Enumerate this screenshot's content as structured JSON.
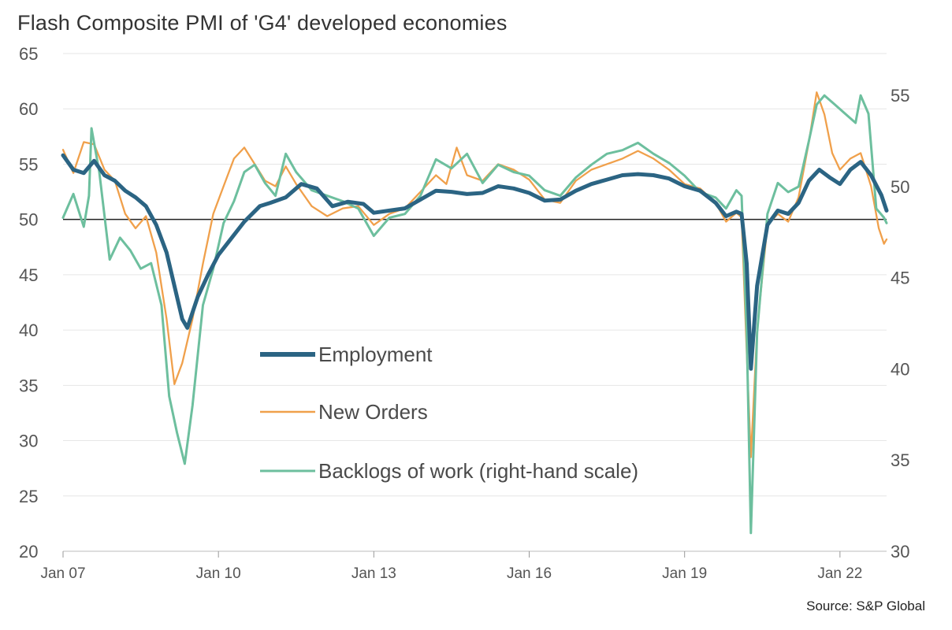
{
  "title": "Flash Composite PMI of 'G4' developed economies",
  "source": "Source: S&P Global",
  "colors": {
    "employment": "#2b6483",
    "new_orders": "#f0a04b",
    "backlogs": "#6dbf9e",
    "grid": "#e6e6e6",
    "reference": "#222222"
  },
  "chart_data": {
    "type": "line",
    "title": "Flash Composite PMI of 'G4' developed economies",
    "x_range": [
      2007.0,
      2022.9
    ],
    "x_tick_labels": [
      "Jan 07",
      "Jan 10",
      "Jan 13",
      "Jan 16",
      "Jan 19",
      "Jan 22"
    ],
    "x_tick_values": [
      2007,
      2010,
      2013,
      2016,
      2019,
      2022
    ],
    "ylim_left": [
      20,
      65
    ],
    "yticks_left": [
      20,
      25,
      30,
      35,
      40,
      45,
      50,
      55,
      60,
      65
    ],
    "ylim_right": [
      30,
      57.3
    ],
    "yticks_right": [
      30,
      35,
      40,
      45,
      50,
      55
    ],
    "reference_line": 50,
    "legend_position": "center-left",
    "series": [
      {
        "name": "Employment",
        "axis": "left",
        "points": [
          [
            2007.0,
            55.8
          ],
          [
            2007.2,
            54.5
          ],
          [
            2007.4,
            54.2
          ],
          [
            2007.6,
            55.3
          ],
          [
            2007.8,
            54.0
          ],
          [
            2008.0,
            53.5
          ],
          [
            2008.2,
            52.6
          ],
          [
            2008.4,
            52.0
          ],
          [
            2008.6,
            51.2
          ],
          [
            2008.8,
            49.5
          ],
          [
            2009.0,
            47.0
          ],
          [
            2009.15,
            44.0
          ],
          [
            2009.3,
            41.0
          ],
          [
            2009.4,
            40.2
          ],
          [
            2009.6,
            43.0
          ],
          [
            2009.8,
            45.0
          ],
          [
            2010.0,
            46.8
          ],
          [
            2010.2,
            48.0
          ],
          [
            2010.5,
            49.8
          ],
          [
            2010.8,
            51.2
          ],
          [
            2011.0,
            51.5
          ],
          [
            2011.3,
            52.0
          ],
          [
            2011.6,
            53.2
          ],
          [
            2011.9,
            52.8
          ],
          [
            2012.2,
            51.2
          ],
          [
            2012.5,
            51.6
          ],
          [
            2012.8,
            51.4
          ],
          [
            2013.0,
            50.6
          ],
          [
            2013.3,
            50.8
          ],
          [
            2013.6,
            51.0
          ],
          [
            2013.9,
            51.8
          ],
          [
            2014.2,
            52.6
          ],
          [
            2014.5,
            52.5
          ],
          [
            2014.8,
            52.3
          ],
          [
            2015.1,
            52.4
          ],
          [
            2015.4,
            53.0
          ],
          [
            2015.7,
            52.8
          ],
          [
            2016.0,
            52.4
          ],
          [
            2016.3,
            51.7
          ],
          [
            2016.6,
            51.8
          ],
          [
            2016.9,
            52.6
          ],
          [
            2017.2,
            53.2
          ],
          [
            2017.5,
            53.6
          ],
          [
            2017.8,
            54.0
          ],
          [
            2018.1,
            54.1
          ],
          [
            2018.4,
            54.0
          ],
          [
            2018.7,
            53.7
          ],
          [
            2019.0,
            53.0
          ],
          [
            2019.3,
            52.6
          ],
          [
            2019.6,
            51.5
          ],
          [
            2019.8,
            50.3
          ],
          [
            2020.0,
            50.7
          ],
          [
            2020.1,
            50.5
          ],
          [
            2020.2,
            46.0
          ],
          [
            2020.28,
            36.5
          ],
          [
            2020.4,
            44.0
          ],
          [
            2020.6,
            49.5
          ],
          [
            2020.8,
            50.8
          ],
          [
            2021.0,
            50.5
          ],
          [
            2021.2,
            51.5
          ],
          [
            2021.4,
            53.5
          ],
          [
            2021.6,
            54.5
          ],
          [
            2021.8,
            53.8
          ],
          [
            2022.0,
            53.2
          ],
          [
            2022.2,
            54.5
          ],
          [
            2022.4,
            55.2
          ],
          [
            2022.6,
            54.0
          ],
          [
            2022.8,
            52.2
          ],
          [
            2022.9,
            50.8
          ]
        ]
      },
      {
        "name": "New Orders",
        "axis": "left",
        "points": [
          [
            2007.0,
            56.3
          ],
          [
            2007.2,
            54.2
          ],
          [
            2007.4,
            57.0
          ],
          [
            2007.6,
            56.8
          ],
          [
            2007.8,
            54.5
          ],
          [
            2008.0,
            53.5
          ],
          [
            2008.2,
            50.5
          ],
          [
            2008.4,
            49.2
          ],
          [
            2008.6,
            50.3
          ],
          [
            2008.8,
            47.0
          ],
          [
            2009.0,
            41.0
          ],
          [
            2009.15,
            35.1
          ],
          [
            2009.3,
            37.0
          ],
          [
            2009.5,
            41.0
          ],
          [
            2009.7,
            46.0
          ],
          [
            2009.9,
            50.5
          ],
          [
            2010.1,
            53.0
          ],
          [
            2010.3,
            55.5
          ],
          [
            2010.5,
            56.5
          ],
          [
            2010.7,
            55.0
          ],
          [
            2010.9,
            53.5
          ],
          [
            2011.1,
            53.0
          ],
          [
            2011.3,
            54.8
          ],
          [
            2011.5,
            53.2
          ],
          [
            2011.8,
            51.2
          ],
          [
            2012.1,
            50.3
          ],
          [
            2012.4,
            51.0
          ],
          [
            2012.7,
            51.2
          ],
          [
            2013.0,
            49.5
          ],
          [
            2013.3,
            50.5
          ],
          [
            2013.6,
            51.0
          ],
          [
            2013.9,
            52.5
          ],
          [
            2014.2,
            54.0
          ],
          [
            2014.4,
            53.2
          ],
          [
            2014.6,
            56.5
          ],
          [
            2014.8,
            54.0
          ],
          [
            2015.1,
            53.5
          ],
          [
            2015.4,
            55.0
          ],
          [
            2015.7,
            54.5
          ],
          [
            2016.0,
            53.6
          ],
          [
            2016.3,
            51.8
          ],
          [
            2016.6,
            51.5
          ],
          [
            2016.9,
            53.5
          ],
          [
            2017.2,
            54.5
          ],
          [
            2017.5,
            55.0
          ],
          [
            2017.8,
            55.5
          ],
          [
            2018.1,
            56.2
          ],
          [
            2018.4,
            55.5
          ],
          [
            2018.7,
            54.5
          ],
          [
            2019.0,
            53.2
          ],
          [
            2019.3,
            52.8
          ],
          [
            2019.6,
            51.5
          ],
          [
            2019.8,
            49.8
          ],
          [
            2020.0,
            50.6
          ],
          [
            2020.1,
            50.2
          ],
          [
            2020.2,
            38.0
          ],
          [
            2020.28,
            28.5
          ],
          [
            2020.4,
            40.0
          ],
          [
            2020.6,
            49.5
          ],
          [
            2020.8,
            50.5
          ],
          [
            2021.0,
            49.8
          ],
          [
            2021.2,
            52.0
          ],
          [
            2021.4,
            57.0
          ],
          [
            2021.55,
            61.5
          ],
          [
            2021.7,
            59.5
          ],
          [
            2021.85,
            56.0
          ],
          [
            2022.0,
            54.5
          ],
          [
            2022.2,
            55.5
          ],
          [
            2022.4,
            56.0
          ],
          [
            2022.6,
            53.0
          ],
          [
            2022.75,
            49.2
          ],
          [
            2022.85,
            47.8
          ],
          [
            2022.9,
            48.2
          ]
        ]
      },
      {
        "name": "Backlogs of work (right-hand scale)",
        "axis": "right",
        "points": [
          [
            2007.0,
            48.3
          ],
          [
            2007.2,
            49.6
          ],
          [
            2007.4,
            47.8
          ],
          [
            2007.5,
            49.5
          ],
          [
            2007.55,
            53.2
          ],
          [
            2007.7,
            50.8
          ],
          [
            2007.9,
            46.0
          ],
          [
            2008.1,
            47.2
          ],
          [
            2008.3,
            46.5
          ],
          [
            2008.5,
            45.5
          ],
          [
            2008.7,
            45.8
          ],
          [
            2008.9,
            43.5
          ],
          [
            2009.05,
            38.5
          ],
          [
            2009.2,
            36.5
          ],
          [
            2009.35,
            34.8
          ],
          [
            2009.5,
            38.0
          ],
          [
            2009.7,
            43.5
          ],
          [
            2009.9,
            45.5
          ],
          [
            2010.1,
            48.0
          ],
          [
            2010.3,
            49.2
          ],
          [
            2010.5,
            50.8
          ],
          [
            2010.7,
            51.2
          ],
          [
            2010.9,
            50.2
          ],
          [
            2011.1,
            49.5
          ],
          [
            2011.3,
            51.8
          ],
          [
            2011.5,
            50.8
          ],
          [
            2011.8,
            49.8
          ],
          [
            2012.1,
            49.5
          ],
          [
            2012.4,
            49.2
          ],
          [
            2012.7,
            48.8
          ],
          [
            2013.0,
            47.3
          ],
          [
            2013.3,
            48.3
          ],
          [
            2013.6,
            48.5
          ],
          [
            2013.9,
            49.5
          ],
          [
            2014.2,
            51.5
          ],
          [
            2014.5,
            51.0
          ],
          [
            2014.8,
            51.8
          ],
          [
            2015.1,
            50.2
          ],
          [
            2015.4,
            51.2
          ],
          [
            2015.7,
            50.8
          ],
          [
            2016.0,
            50.6
          ],
          [
            2016.3,
            49.8
          ],
          [
            2016.6,
            49.5
          ],
          [
            2016.9,
            50.5
          ],
          [
            2017.2,
            51.2
          ],
          [
            2017.5,
            51.8
          ],
          [
            2017.8,
            52.0
          ],
          [
            2018.1,
            52.4
          ],
          [
            2018.4,
            51.8
          ],
          [
            2018.7,
            51.3
          ],
          [
            2019.0,
            50.6
          ],
          [
            2019.3,
            49.7
          ],
          [
            2019.6,
            49.4
          ],
          [
            2019.8,
            48.8
          ],
          [
            2020.0,
            49.8
          ],
          [
            2020.1,
            49.5
          ],
          [
            2020.2,
            42.0
          ],
          [
            2020.28,
            31.0
          ],
          [
            2020.4,
            42.0
          ],
          [
            2020.6,
            48.5
          ],
          [
            2020.8,
            50.2
          ],
          [
            2021.0,
            49.7
          ],
          [
            2021.2,
            50.0
          ],
          [
            2021.4,
            52.5
          ],
          [
            2021.55,
            54.5
          ],
          [
            2021.7,
            55.0
          ],
          [
            2021.9,
            54.5
          ],
          [
            2022.1,
            54.0
          ],
          [
            2022.3,
            53.5
          ],
          [
            2022.4,
            55.0
          ],
          [
            2022.55,
            54.0
          ],
          [
            2022.7,
            48.8
          ],
          [
            2022.85,
            48.3
          ],
          [
            2022.9,
            48.0
          ]
        ]
      }
    ]
  }
}
